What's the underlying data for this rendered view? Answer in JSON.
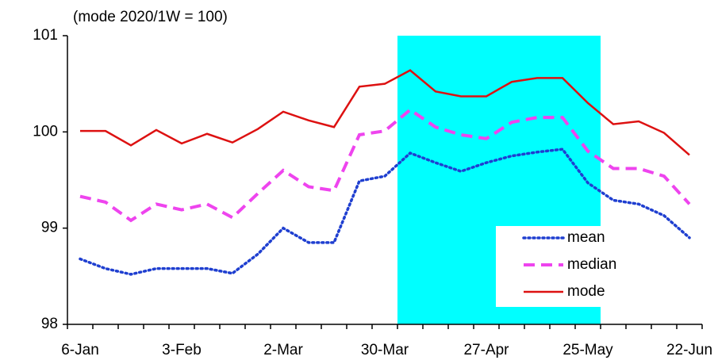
{
  "chart_data": {
    "type": "line",
    "title": "(mode 2020/1W = 100)",
    "categories": [
      "6-Jan",
      null,
      null,
      null,
      "3-Feb",
      null,
      null,
      null,
      "2-Mar",
      null,
      null,
      null,
      "30-Mar",
      null,
      null,
      null,
      "27-Apr",
      null,
      null,
      null,
      "25-May",
      null,
      null,
      null,
      "22-Jun"
    ],
    "series": [
      {
        "name": "mean",
        "color": "#1f3fd0",
        "style": "dotted",
        "values": [
          98.68,
          98.58,
          98.52,
          98.58,
          98.58,
          98.58,
          98.53,
          98.73,
          99.0,
          98.85,
          98.85,
          99.49,
          99.54,
          99.78,
          99.68,
          99.59,
          99.68,
          99.75,
          99.79,
          99.82,
          99.47,
          99.29,
          99.25,
          99.13,
          98.9
        ]
      },
      {
        "name": "median",
        "color": "#ee44ee",
        "style": "dashed",
        "values": [
          99.33,
          99.27,
          99.08,
          99.25,
          99.19,
          99.25,
          99.11,
          99.36,
          99.6,
          99.43,
          99.39,
          99.97,
          100.01,
          100.23,
          100.05,
          99.97,
          99.93,
          100.1,
          100.15,
          100.15,
          99.8,
          99.62,
          99.62,
          99.54,
          99.25
        ]
      },
      {
        "name": "mode",
        "color": "#dd1111",
        "style": "solid",
        "values": [
          100.01,
          100.01,
          99.86,
          100.02,
          99.88,
          99.98,
          99.89,
          100.03,
          100.21,
          100.12,
          100.05,
          100.47,
          100.5,
          100.64,
          100.42,
          100.37,
          100.37,
          100.52,
          100.56,
          100.56,
          100.3,
          100.08,
          100.11,
          99.99,
          99.76
        ]
      }
    ],
    "ylim": [
      98,
      101
    ],
    "yticks": [
      98,
      99,
      100,
      101
    ],
    "shade": {
      "from": 12.5,
      "to": 20.5,
      "color": "#00ffff"
    },
    "legend": "lower right"
  }
}
